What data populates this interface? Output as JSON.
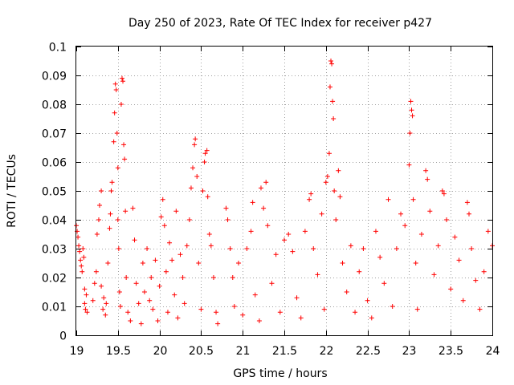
{
  "chart_data": {
    "type": "scatter",
    "title": "Day 250 of 2023, Rate Of TEC Index for receiver p427",
    "xlabel": "GPS time / hours",
    "ylabel": "ROTI / TECUs",
    "xlim": [
      19,
      24
    ],
    "ylim": [
      0,
      0.1
    ],
    "x_ticks": [
      19,
      19.5,
      20,
      20.5,
      21,
      21.5,
      22,
      22.5,
      23,
      23.5,
      24
    ],
    "x_tick_labels": [
      "19",
      "19.5",
      "20",
      "20.5",
      "21",
      "21.5",
      "22",
      "22.5",
      "23",
      "23.5",
      "24"
    ],
    "y_ticks": [
      0,
      0.01,
      0.02,
      0.03,
      0.04,
      0.05,
      0.06,
      0.07,
      0.08,
      0.09,
      0.1
    ],
    "y_tick_labels": [
      "0",
      "0.01",
      "0.02",
      "0.03",
      "0.04",
      "0.05",
      "0.06",
      "0.07",
      "0.08",
      "0.09",
      "0.1"
    ],
    "grid": true,
    "marker": "+",
    "series": [
      {
        "name": "ROTI",
        "color": "#ff0000",
        "points": [
          [
            19.0,
            0.038
          ],
          [
            19.01,
            0.036
          ],
          [
            19.02,
            0.034
          ],
          [
            19.03,
            0.031
          ],
          [
            19.04,
            0.029
          ],
          [
            19.05,
            0.026
          ],
          [
            19.06,
            0.024
          ],
          [
            19.07,
            0.022
          ],
          [
            19.08,
            0.03
          ],
          [
            19.09,
            0.027
          ],
          [
            19.1,
            0.016
          ],
          [
            19.1,
            0.011
          ],
          [
            19.11,
            0.009
          ],
          [
            19.12,
            0.014
          ],
          [
            19.13,
            0.008
          ],
          [
            19.2,
            0.012
          ],
          [
            19.22,
            0.018
          ],
          [
            19.24,
            0.022
          ],
          [
            19.25,
            0.035
          ],
          [
            19.27,
            0.04
          ],
          [
            19.28,
            0.045
          ],
          [
            19.3,
            0.05
          ],
          [
            19.3,
            0.017
          ],
          [
            19.32,
            0.009
          ],
          [
            19.33,
            0.013
          ],
          [
            19.35,
            0.007
          ],
          [
            19.36,
            0.011
          ],
          [
            19.38,
            0.025
          ],
          [
            19.4,
            0.037
          ],
          [
            19.41,
            0.042
          ],
          [
            19.42,
            0.05
          ],
          [
            19.43,
            0.053
          ],
          [
            19.45,
            0.067
          ],
          [
            19.46,
            0.077
          ],
          [
            19.47,
            0.087
          ],
          [
            19.48,
            0.085
          ],
          [
            19.49,
            0.07
          ],
          [
            19.5,
            0.058
          ],
          [
            19.5,
            0.04
          ],
          [
            19.51,
            0.03
          ],
          [
            19.52,
            0.015
          ],
          [
            19.53,
            0.01
          ],
          [
            19.54,
            0.08
          ],
          [
            19.55,
            0.089
          ],
          [
            19.56,
            0.088
          ],
          [
            19.57,
            0.066
          ],
          [
            19.58,
            0.061
          ],
          [
            19.59,
            0.043
          ],
          [
            19.6,
            0.02
          ],
          [
            19.62,
            0.008
          ],
          [
            19.65,
            0.005
          ],
          [
            19.68,
            0.044
          ],
          [
            19.7,
            0.033
          ],
          [
            19.72,
            0.018
          ],
          [
            19.75,
            0.011
          ],
          [
            19.78,
            0.004
          ],
          [
            19.8,
            0.025
          ],
          [
            19.82,
            0.015
          ],
          [
            19.85,
            0.03
          ],
          [
            19.88,
            0.012
          ],
          [
            19.9,
            0.02
          ],
          [
            19.92,
            0.009
          ],
          [
            19.95,
            0.026
          ],
          [
            19.98,
            0.005
          ],
          [
            20.0,
            0.017
          ],
          [
            20.02,
            0.041
          ],
          [
            20.04,
            0.047
          ],
          [
            20.06,
            0.038
          ],
          [
            20.08,
            0.022
          ],
          [
            20.1,
            0.008
          ],
          [
            20.12,
            0.032
          ],
          [
            20.15,
            0.026
          ],
          [
            20.18,
            0.014
          ],
          [
            20.2,
            0.043
          ],
          [
            20.22,
            0.006
          ],
          [
            20.25,
            0.028
          ],
          [
            20.28,
            0.02
          ],
          [
            20.3,
            0.011
          ],
          [
            20.33,
            0.031
          ],
          [
            20.36,
            0.04
          ],
          [
            20.38,
            0.051
          ],
          [
            20.4,
            0.058
          ],
          [
            20.42,
            0.066
          ],
          [
            20.43,
            0.068
          ],
          [
            20.45,
            0.055
          ],
          [
            20.47,
            0.025
          ],
          [
            20.5,
            0.009
          ],
          [
            20.52,
            0.05
          ],
          [
            20.54,
            0.06
          ],
          [
            20.55,
            0.063
          ],
          [
            20.57,
            0.064
          ],
          [
            20.58,
            0.048
          ],
          [
            20.6,
            0.035
          ],
          [
            20.62,
            0.031
          ],
          [
            20.65,
            0.02
          ],
          [
            20.68,
            0.008
          ],
          [
            20.7,
            0.004
          ],
          [
            20.8,
            0.044
          ],
          [
            20.82,
            0.04
          ],
          [
            20.85,
            0.03
          ],
          [
            20.88,
            0.02
          ],
          [
            20.9,
            0.01
          ],
          [
            20.95,
            0.025
          ],
          [
            21.0,
            0.007
          ],
          [
            21.05,
            0.03
          ],
          [
            21.1,
            0.036
          ],
          [
            21.12,
            0.046
          ],
          [
            21.15,
            0.014
          ],
          [
            21.2,
            0.005
          ],
          [
            21.22,
            0.051
          ],
          [
            21.25,
            0.044
          ],
          [
            21.28,
            0.053
          ],
          [
            21.3,
            0.038
          ],
          [
            21.35,
            0.018
          ],
          [
            21.4,
            0.028
          ],
          [
            21.45,
            0.008
          ],
          [
            21.5,
            0.033
          ],
          [
            21.55,
            0.035
          ],
          [
            21.6,
            0.029
          ],
          [
            21.65,
            0.013
          ],
          [
            21.7,
            0.006
          ],
          [
            21.75,
            0.036
          ],
          [
            21.8,
            0.047
          ],
          [
            21.82,
            0.049
          ],
          [
            21.85,
            0.03
          ],
          [
            21.9,
            0.021
          ],
          [
            21.95,
            0.042
          ],
          [
            21.98,
            0.009
          ],
          [
            22.0,
            0.053
          ],
          [
            22.02,
            0.055
          ],
          [
            22.04,
            0.063
          ],
          [
            22.05,
            0.086
          ],
          [
            22.06,
            0.095
          ],
          [
            22.07,
            0.094
          ],
          [
            22.08,
            0.081
          ],
          [
            22.09,
            0.075
          ],
          [
            22.1,
            0.05
          ],
          [
            22.12,
            0.04
          ],
          [
            22.15,
            0.057
          ],
          [
            22.17,
            0.048
          ],
          [
            22.2,
            0.025
          ],
          [
            22.25,
            0.015
          ],
          [
            22.3,
            0.031
          ],
          [
            22.35,
            0.008
          ],
          [
            22.4,
            0.022
          ],
          [
            22.45,
            0.03
          ],
          [
            22.5,
            0.012
          ],
          [
            22.55,
            0.006
          ],
          [
            22.6,
            0.036
          ],
          [
            22.65,
            0.027
          ],
          [
            22.7,
            0.018
          ],
          [
            22.75,
            0.047
          ],
          [
            22.8,
            0.01
          ],
          [
            22.85,
            0.03
          ],
          [
            22.9,
            0.042
          ],
          [
            22.95,
            0.038
          ],
          [
            23.0,
            0.059
          ],
          [
            23.01,
            0.07
          ],
          [
            23.02,
            0.081
          ],
          [
            23.03,
            0.078
          ],
          [
            23.04,
            0.076
          ],
          [
            23.05,
            0.047
          ],
          [
            23.08,
            0.025
          ],
          [
            23.1,
            0.009
          ],
          [
            23.15,
            0.035
          ],
          [
            23.2,
            0.057
          ],
          [
            23.22,
            0.054
          ],
          [
            23.25,
            0.043
          ],
          [
            23.3,
            0.021
          ],
          [
            23.35,
            0.031
          ],
          [
            23.4,
            0.05
          ],
          [
            23.42,
            0.049
          ],
          [
            23.45,
            0.04
          ],
          [
            23.5,
            0.016
          ],
          [
            23.55,
            0.034
          ],
          [
            23.6,
            0.026
          ],
          [
            23.65,
            0.012
          ],
          [
            23.7,
            0.046
          ],
          [
            23.72,
            0.042
          ],
          [
            23.75,
            0.03
          ],
          [
            23.8,
            0.019
          ],
          [
            23.85,
            0.009
          ],
          [
            23.9,
            0.022
          ],
          [
            23.95,
            0.036
          ],
          [
            24.0,
            0.031
          ]
        ]
      }
    ]
  }
}
